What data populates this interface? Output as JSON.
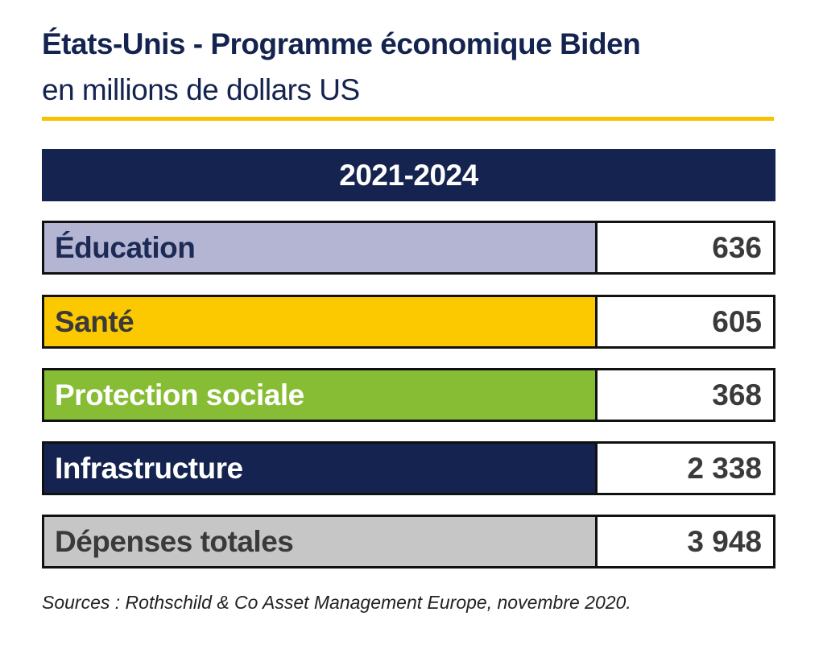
{
  "header": {
    "title": "États-Unis - Programme économique Biden",
    "subtitle": "en millions de dollars US"
  },
  "colors": {
    "navy": "#14234f",
    "accent_rule": "#f7c300"
  },
  "chart_data": {
    "type": "table",
    "period": "2021-2024",
    "rows": [
      {
        "label": "Éducation",
        "value": "636",
        "fill": "#b3b5d2",
        "text_color": "#1d2a55"
      },
      {
        "label": "Santé",
        "value": "605",
        "fill": "#fcc900",
        "text_color": "#3a3a3a"
      },
      {
        "label": "Protection sociale",
        "value": "368",
        "fill": "#87bd35",
        "text_color": "#ffffff"
      },
      {
        "label": "Infrastructure",
        "value": "2 338",
        "fill": "#14234f",
        "text_color": "#ffffff"
      },
      {
        "label": "Dépenses totales",
        "value": "3 948",
        "fill": "#c6c6c6",
        "text_color": "#3a3a3a"
      }
    ]
  },
  "footer": {
    "source": "Sources : Rothschild & Co Asset Management Europe, novembre 2020."
  }
}
